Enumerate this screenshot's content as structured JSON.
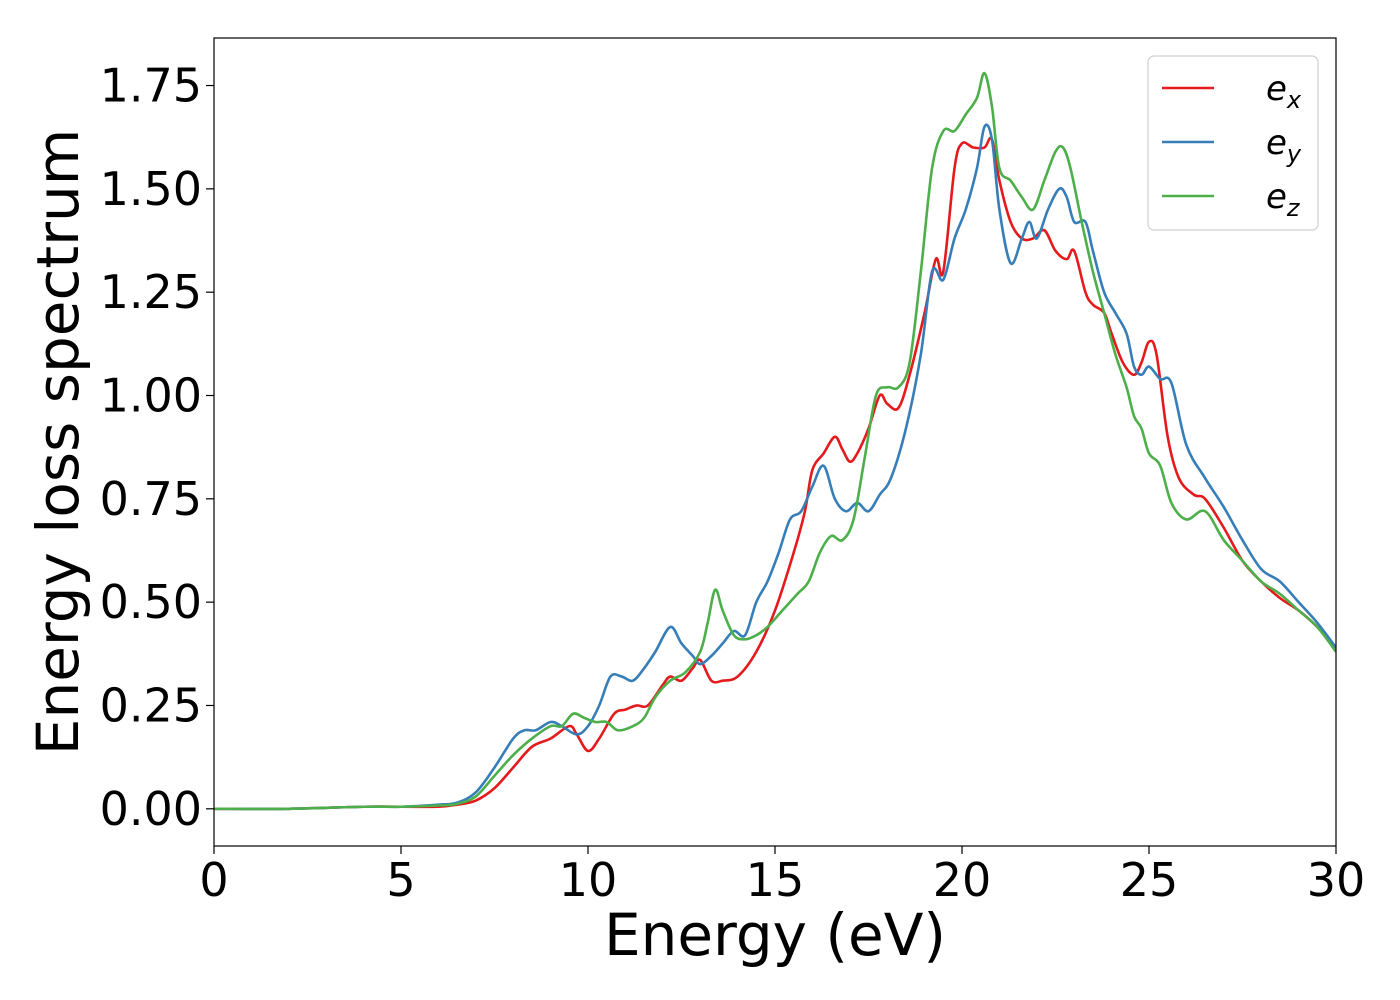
{
  "chart_data": {
    "type": "line",
    "title": "",
    "xlabel": "Energy (eV)",
    "ylabel": "Energy loss spectrum",
    "xlim": [
      0,
      30
    ],
    "ylim": [
      -0.09,
      1.865
    ],
    "xticks": [
      0,
      5,
      10,
      15,
      20,
      25,
      30
    ],
    "xtick_labels": [
      "0",
      "5",
      "10",
      "15",
      "20",
      "25",
      "30"
    ],
    "yticks": [
      0,
      0.25,
      0.5,
      0.75,
      1.0,
      1.25,
      1.5,
      1.75
    ],
    "ytick_labels": [
      "0.00",
      "0.25",
      "0.50",
      "0.75",
      "1.00",
      "1.25",
      "1.50",
      "1.75"
    ],
    "grid": false,
    "legend_position": "top-right",
    "series": [
      {
        "name": "e_x",
        "label_main": "e",
        "label_sub": "x",
        "color": "#e41a1c",
        "x": [
          0,
          2,
          4,
          5,
          6,
          6.5,
          7,
          7.5,
          8,
          8.5,
          9,
          9.5,
          9.7,
          10,
          10.3,
          10.7,
          11,
          11.3,
          11.6,
          12,
          12.2,
          12.5,
          12.8,
          13,
          13.3,
          13.6,
          14,
          14.5,
          15,
          15.5,
          15.8,
          16,
          16.3,
          16.6,
          16.8,
          17,
          17.2,
          17.5,
          17.8,
          18,
          18.3,
          18.6,
          19,
          19.3,
          19.5,
          19.8,
          20,
          20.3,
          20.6,
          20.8,
          21,
          21.3,
          21.6,
          21.9,
          22.2,
          22.5,
          22.8,
          23,
          23.3,
          23.5,
          23.8,
          24,
          24.3,
          24.6,
          24.8,
          25,
          25.2,
          25.5,
          25.8,
          26.2,
          26.5,
          27,
          27.5,
          28,
          28.5,
          29,
          29.5,
          30
        ],
        "y": [
          0,
          0,
          0.005,
          0.005,
          0.005,
          0.01,
          0.02,
          0.05,
          0.1,
          0.15,
          0.17,
          0.2,
          0.18,
          0.14,
          0.17,
          0.23,
          0.24,
          0.25,
          0.25,
          0.3,
          0.32,
          0.31,
          0.34,
          0.36,
          0.31,
          0.31,
          0.32,
          0.38,
          0.48,
          0.62,
          0.72,
          0.82,
          0.86,
          0.9,
          0.87,
          0.84,
          0.86,
          0.92,
          1.0,
          0.98,
          0.97,
          1.05,
          1.2,
          1.33,
          1.3,
          1.55,
          1.61,
          1.6,
          1.6,
          1.62,
          1.52,
          1.42,
          1.38,
          1.38,
          1.4,
          1.35,
          1.33,
          1.35,
          1.25,
          1.22,
          1.2,
          1.15,
          1.08,
          1.05,
          1.08,
          1.13,
          1.1,
          0.9,
          0.8,
          0.76,
          0.75,
          0.68,
          0.6,
          0.55,
          0.51,
          0.48,
          0.44,
          0.39
        ]
      },
      {
        "name": "e_y",
        "label_main": "e",
        "label_sub": "y",
        "color": "#377eb8",
        "x": [
          0,
          2,
          4,
          5,
          6,
          6.5,
          7,
          7.5,
          8,
          8.3,
          8.6,
          9,
          9.3,
          9.7,
          10,
          10.3,
          10.6,
          10.9,
          11.2,
          11.5,
          11.8,
          12.2,
          12.5,
          12.8,
          13,
          13.3,
          13.6,
          13.9,
          14.2,
          14.5,
          14.8,
          15.1,
          15.4,
          15.7,
          16,
          16.3,
          16.6,
          16.9,
          17.2,
          17.5,
          17.8,
          18.1,
          18.5,
          18.9,
          19.2,
          19.5,
          19.8,
          20.1,
          20.4,
          20.6,
          20.8,
          21,
          21.3,
          21.6,
          21.8,
          22,
          22.3,
          22.6,
          22.8,
          23,
          23.3,
          23.5,
          23.8,
          24.1,
          24.4,
          24.6,
          24.8,
          25,
          25.3,
          25.6,
          26,
          26.5,
          27,
          27.5,
          28,
          28.5,
          29,
          29.5,
          30
        ],
        "y": [
          0,
          0,
          0.005,
          0.005,
          0.01,
          0.015,
          0.04,
          0.1,
          0.17,
          0.19,
          0.19,
          0.21,
          0.2,
          0.18,
          0.2,
          0.25,
          0.32,
          0.32,
          0.31,
          0.34,
          0.38,
          0.44,
          0.4,
          0.37,
          0.35,
          0.37,
          0.4,
          0.43,
          0.42,
          0.5,
          0.55,
          0.62,
          0.7,
          0.72,
          0.78,
          0.83,
          0.75,
          0.72,
          0.74,
          0.72,
          0.76,
          0.8,
          0.92,
          1.1,
          1.3,
          1.28,
          1.38,
          1.45,
          1.55,
          1.65,
          1.62,
          1.45,
          1.32,
          1.38,
          1.42,
          1.38,
          1.45,
          1.5,
          1.48,
          1.42,
          1.42,
          1.35,
          1.25,
          1.2,
          1.15,
          1.07,
          1.05,
          1.07,
          1.04,
          1.03,
          0.88,
          0.8,
          0.73,
          0.65,
          0.58,
          0.55,
          0.5,
          0.45,
          0.39
        ]
      },
      {
        "name": "e_z",
        "label_main": "e",
        "label_sub": "z",
        "color": "#4daf4a",
        "x": [
          0,
          2,
          4,
          5,
          6,
          6.5,
          7,
          7.5,
          8,
          8.5,
          9,
          9.3,
          9.6,
          9.9,
          10.2,
          10.5,
          10.8,
          11.2,
          11.5,
          11.8,
          12.2,
          12.6,
          13,
          13.2,
          13.4,
          13.6,
          13.9,
          14.2,
          14.5,
          14.8,
          15.2,
          15.6,
          15.9,
          16.2,
          16.5,
          16.8,
          17.1,
          17.4,
          17.7,
          18,
          18.3,
          18.6,
          18.9,
          19.2,
          19.5,
          19.8,
          20.1,
          20.4,
          20.6,
          20.8,
          21,
          21.3,
          21.6,
          21.9,
          22.2,
          22.5,
          22.7,
          22.9,
          23.2,
          23.5,
          23.8,
          24.1,
          24.4,
          24.6,
          24.8,
          25,
          25.3,
          25.6,
          26,
          26.5,
          27,
          27.5,
          28,
          28.5,
          29,
          29.5,
          30
        ],
        "y": [
          0,
          0,
          0.005,
          0.005,
          0.008,
          0.012,
          0.03,
          0.08,
          0.13,
          0.17,
          0.2,
          0.2,
          0.23,
          0.22,
          0.21,
          0.21,
          0.19,
          0.2,
          0.22,
          0.27,
          0.31,
          0.33,
          0.38,
          0.45,
          0.53,
          0.48,
          0.42,
          0.41,
          0.42,
          0.44,
          0.48,
          0.52,
          0.55,
          0.62,
          0.66,
          0.65,
          0.7,
          0.85,
          1.0,
          1.02,
          1.02,
          1.08,
          1.3,
          1.55,
          1.64,
          1.64,
          1.68,
          1.72,
          1.78,
          1.7,
          1.55,
          1.52,
          1.48,
          1.45,
          1.52,
          1.59,
          1.6,
          1.55,
          1.42,
          1.3,
          1.2,
          1.1,
          1.02,
          0.95,
          0.92,
          0.86,
          0.83,
          0.74,
          0.7,
          0.72,
          0.65,
          0.6,
          0.55,
          0.52,
          0.48,
          0.44,
          0.38
        ]
      }
    ]
  }
}
